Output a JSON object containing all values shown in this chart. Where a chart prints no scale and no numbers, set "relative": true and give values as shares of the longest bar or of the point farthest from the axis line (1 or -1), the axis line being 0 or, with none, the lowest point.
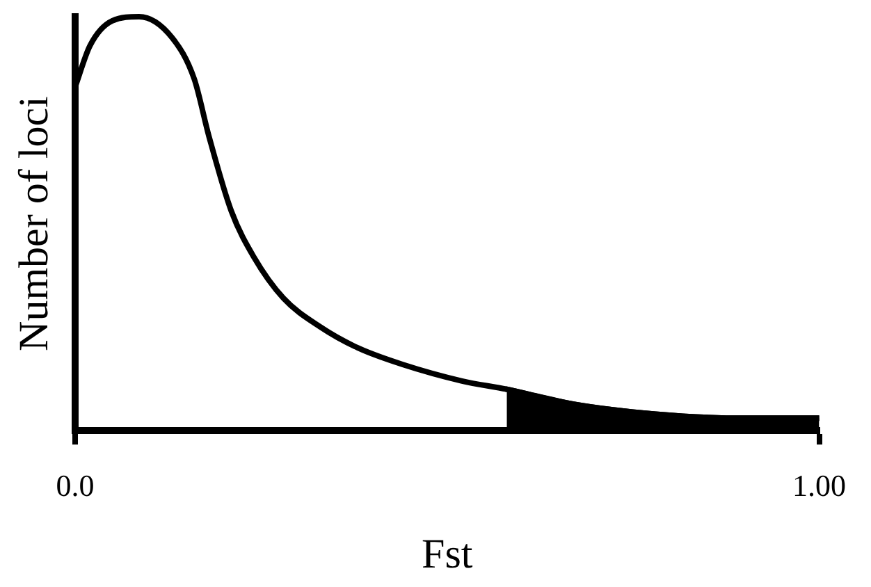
{
  "chart_data": {
    "type": "line",
    "xlabel": "Fst",
    "ylabel": "Number of loci",
    "relative": true,
    "xlim": [
      0,
      1
    ],
    "xticks": [
      {
        "value": 0,
        "label": "0.0"
      },
      {
        "value": 1,
        "label": "1.00"
      }
    ],
    "series": [
      {
        "type": "line",
        "color": "#000000",
        "x": [
          0,
          0.02,
          0.05,
          0.086,
          0.13,
          0.16,
          0.18,
          0.21,
          0.24,
          0.28,
          0.33,
          0.38,
          0.44,
          0.52,
          0.58,
          0.67,
          0.78,
          0.9,
          1
        ],
        "values": [
          0.83,
          0.93,
          0.99,
          1,
          0.95,
          0.85,
          0.71,
          0.53,
          0.42,
          0.32,
          0.25,
          0.2,
          0.16,
          0.12,
          0.1,
          0.064,
          0.04,
          0.03,
          0.03
        ]
      },
      {
        "type": "area",
        "color": "#000000",
        "x": [
          0.58,
          0.67,
          0.78,
          0.9,
          1
        ],
        "values": [
          0.1,
          0.064,
          0.04,
          0.03,
          0.03
        ]
      }
    ],
    "grid": false,
    "legend": false,
    "marker": "none"
  }
}
